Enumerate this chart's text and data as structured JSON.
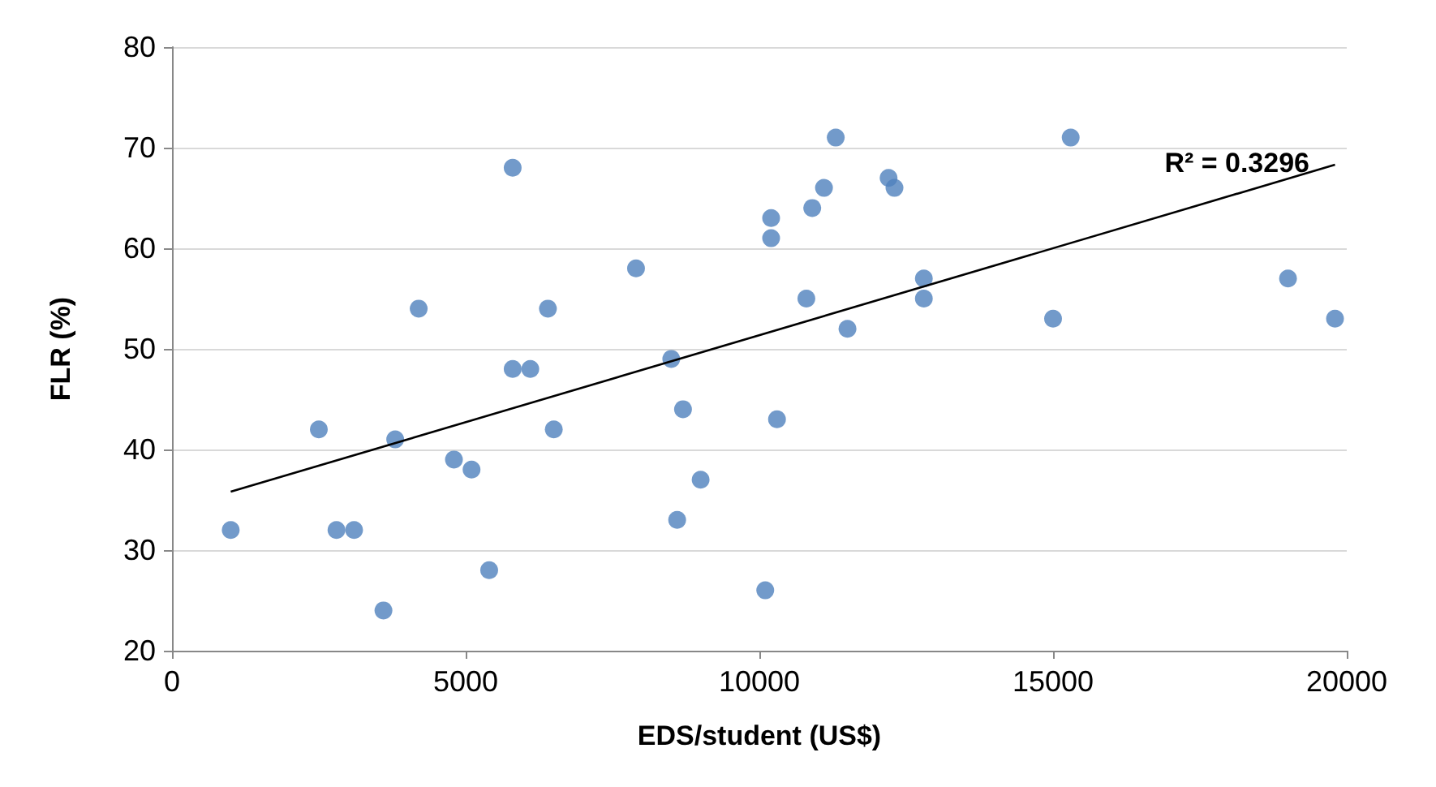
{
  "chart_data": {
    "type": "scatter",
    "xlabel": "EDS/student (US$)",
    "ylabel": "FLR (%)",
    "xlim": [
      0,
      20000
    ],
    "xticks": [
      0,
      5000,
      10000,
      15000,
      20000
    ],
    "ylim": [
      20,
      80
    ],
    "yticks": [
      20,
      30,
      40,
      50,
      60,
      70,
      80
    ],
    "grid": "y",
    "series": [
      {
        "marker": "circle",
        "color": "#4f81bd",
        "x": [
          1000,
          2500,
          2800,
          3100,
          3600,
          3800,
          4200,
          4800,
          5100,
          5400,
          5800,
          5800,
          6100,
          6400,
          6500,
          7900,
          8500,
          8600,
          8700,
          9000,
          10100,
          10200,
          10200,
          10300,
          10800,
          10900,
          11100,
          11300,
          11500,
          12200,
          12300,
          12800,
          12800,
          15000,
          15300,
          19000,
          19800
        ],
        "values": [
          32,
          42,
          32,
          32,
          24,
          41,
          54,
          39,
          38,
          28,
          68,
          48,
          48,
          54,
          42,
          58,
          49,
          33,
          44,
          37,
          26,
          61,
          63,
          43,
          55,
          64,
          66,
          71,
          52,
          67,
          66,
          57,
          55,
          53,
          71,
          57,
          53
        ]
      },
      {
        "type": "line",
        "marker": "none",
        "color": "#000000",
        "x": [
          1000,
          19800
        ],
        "values": [
          35.8,
          68.3
        ]
      }
    ],
    "annotations": [
      "R² = 0.3296"
    ]
  }
}
